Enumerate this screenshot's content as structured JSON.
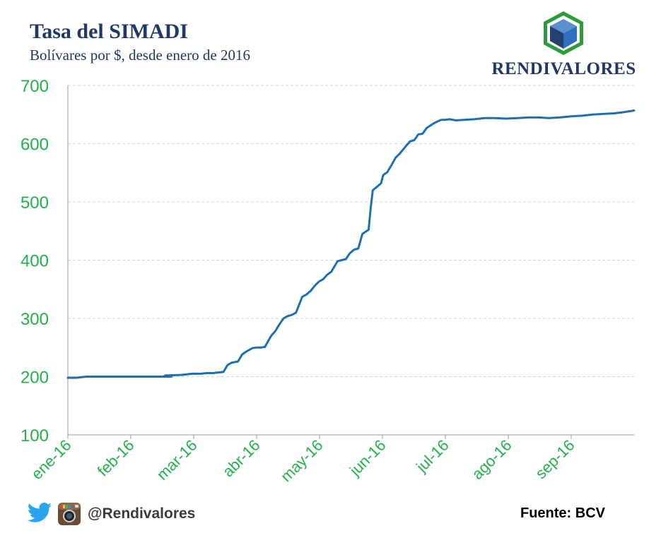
{
  "header": {
    "title": "Tasa del SIMADI",
    "subtitle": "Bolívares por $, desde enero de 2016"
  },
  "logo": {
    "text": "RENDIVALORES",
    "icon": "cube-icon"
  },
  "footer": {
    "handle": "@Rendivalores",
    "source": "Fuente: BCV",
    "icons": [
      "twitter-icon",
      "instagram-icon"
    ]
  },
  "colors": {
    "line": "#1f6fb0",
    "tick_labels": "#22b04b",
    "title": "#1f3864",
    "grid": "#c8d8dc"
  },
  "chart_data": {
    "type": "line",
    "title": "Tasa del SIMADI",
    "subtitle": "Bolívares por $, desde enero de 2016",
    "xlabel": "",
    "ylabel": "",
    "ylim": [
      100,
      700
    ],
    "yticks": [
      100,
      200,
      300,
      400,
      500,
      600,
      700
    ],
    "xticks": [
      "ene-16",
      "feb-16",
      "mar-16",
      "abr-16",
      "may-16",
      "jun-16",
      "jul-16",
      "ago-16",
      "sep-16"
    ],
    "xlim": [
      "2016-01-01",
      "2016-09-30"
    ],
    "grid": "horizontal dashed",
    "legend": "none",
    "series": [
      {
        "x": [
          "2016-01-01",
          "2016-01-05",
          "2016-01-10",
          "2016-01-20",
          "2016-01-31",
          "2016-02-10",
          "2016-02-20",
          "2016-02-16",
          "2016-02-17",
          "2016-02-25",
          "2016-03-01",
          "2016-03-05",
          "2016-03-08",
          "2016-03-11",
          "2016-03-13",
          "2016-03-16",
          "2016-03-18",
          "2016-03-20",
          "2016-03-23",
          "2016-03-25",
          "2016-03-27",
          "2016-03-30",
          "2016-04-01",
          "2016-04-03",
          "2016-04-05",
          "2016-04-08",
          "2016-04-10",
          "2016-04-12",
          "2016-04-14",
          "2016-04-16",
          "2016-04-18",
          "2016-04-20",
          "2016-04-23",
          "2016-04-25",
          "2016-04-27",
          "2016-04-29",
          "2016-05-01",
          "2016-05-03",
          "2016-05-05",
          "2016-05-07",
          "2016-05-10",
          "2016-05-12",
          "2016-05-14",
          "2016-05-16",
          "2016-05-18",
          "2016-05-20",
          "2016-05-22",
          "2016-05-24",
          "2016-05-25",
          "2016-05-26",
          "2016-05-27",
          "2016-05-29",
          "2016-05-31",
          "2016-06-01",
          "2016-06-03",
          "2016-06-05",
          "2016-06-07",
          "2016-06-09",
          "2016-06-12",
          "2016-06-14",
          "2016-06-16",
          "2016-06-18",
          "2016-06-20",
          "2016-06-22",
          "2016-06-25",
          "2016-06-27",
          "2016-06-29",
          "2016-07-01",
          "2016-07-03",
          "2016-07-06",
          "2016-07-10",
          "2016-07-15",
          "2016-07-20",
          "2016-07-25",
          "2016-07-30",
          "2016-08-05",
          "2016-08-10",
          "2016-08-15",
          "2016-08-20",
          "2016-08-25",
          "2016-08-31",
          "2016-09-05",
          "2016-09-10",
          "2016-09-15",
          "2016-09-20",
          "2016-09-25",
          "2016-09-30"
        ],
        "values": [
          198,
          198,
          200,
          200,
          200,
          200,
          200,
          200,
          202,
          203,
          205,
          205,
          206,
          206,
          207,
          208,
          220,
          224,
          226,
          238,
          243,
          249,
          250,
          250,
          251,
          270,
          278,
          290,
          300,
          304,
          306,
          310,
          337,
          341,
          347,
          356,
          363,
          367,
          375,
          380,
          398,
          400,
          402,
          412,
          418,
          420,
          445,
          450,
          452,
          490,
          520,
          526,
          532,
          546,
          551,
          563,
          576,
          583,
          596,
          604,
          606,
          616,
          617,
          627,
          634,
          638,
          641,
          641,
          642,
          640,
          641,
          642,
          644,
          644,
          643,
          644,
          645,
          645,
          644,
          645,
          647,
          648,
          650,
          651,
          652,
          654,
          657
        ]
      }
    ]
  }
}
